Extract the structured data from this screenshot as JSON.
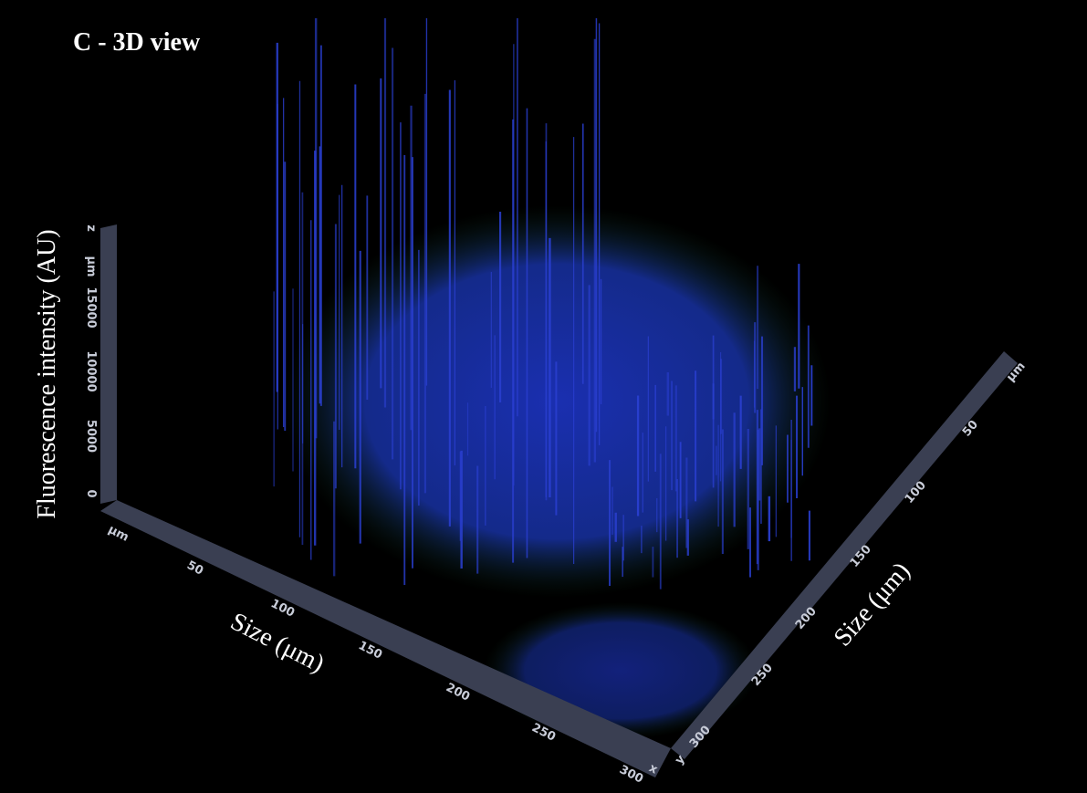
{
  "title": "C - 3D view",
  "z_axis": {
    "label": "Fluorescence intensity (AU)",
    "ticks": [
      "0",
      "5000",
      "10000",
      "15000",
      "µm",
      "z"
    ]
  },
  "x_axis": {
    "label": "Size (μm)",
    "ticks": [
      "µm",
      "50",
      "100",
      "150",
      "200",
      "250",
      "300",
      "x"
    ]
  },
  "y_axis": {
    "label": "Size (μm)",
    "ticks": [
      "y",
      "300",
      "250",
      "200",
      "150",
      "100",
      "50",
      "µm"
    ]
  }
}
